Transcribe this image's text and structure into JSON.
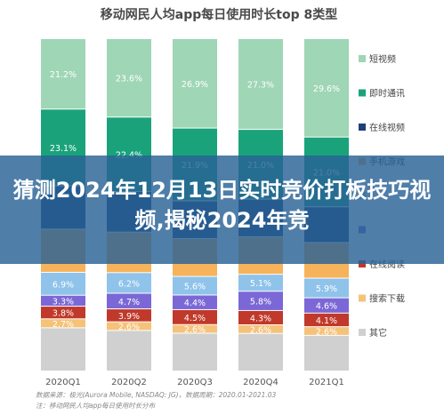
{
  "chart_data": {
    "type": "bar",
    "stacked": true,
    "title": "移动网民人均app每日使用时长top 8类型",
    "categories": [
      "2020Q1",
      "2020Q2",
      "2020Q3",
      "2020Q4",
      "2021Q1"
    ],
    "series": [
      {
        "name": "其它",
        "color": "#d0d0d0",
        "values": [
          null,
          null,
          null,
          null,
          null
        ]
      },
      {
        "name": "搜索下载",
        "color": "#f5c27a",
        "values": [
          2.7,
          2.6,
          2.6,
          2.6,
          2.6
        ]
      },
      {
        "name": "在线阅读",
        "color": "#c0392b",
        "values": [
          3.8,
          3.9,
          4.5,
          4.3,
          4.1
        ]
      },
      {
        "name": "",
        "color": "#7b68d6",
        "values": [
          3.3,
          4.7,
          4.4,
          5.8,
          4.6
        ]
      },
      {
        "name": "",
        "color": "#8fc3ea",
        "values": [
          6.9,
          6.2,
          5.6,
          5.1,
          5.9
        ]
      },
      {
        "name": "手机游戏",
        "color": "#f6b35b",
        "values": [
          null,
          null,
          null,
          null,
          null
        ]
      },
      {
        "name": "在线视频",
        "color": "#1f3f77",
        "values": [
          null,
          null,
          null,
          null,
          null
        ]
      },
      {
        "name": "即时通讯",
        "color": "#1aa37a",
        "values": [
          23.1,
          22.4,
          21.9,
          21.0,
          21.0
        ]
      },
      {
        "name": "短视频",
        "color": "#9fd6b6",
        "values": [
          21.2,
          23.6,
          26.9,
          27.3,
          29.6
        ]
      }
    ],
    "legend_position": "right",
    "source": "数据来源：极光(Aurora Mobile, NASDAQ: JG)，数据周期：2020.01-2021.03",
    "note": "注：移动网民人均app每日使用时长分布"
  },
  "banner": {
    "text": "猜测2024年12月13日实时竞价打板技巧视频,揭秘2024年竞"
  }
}
